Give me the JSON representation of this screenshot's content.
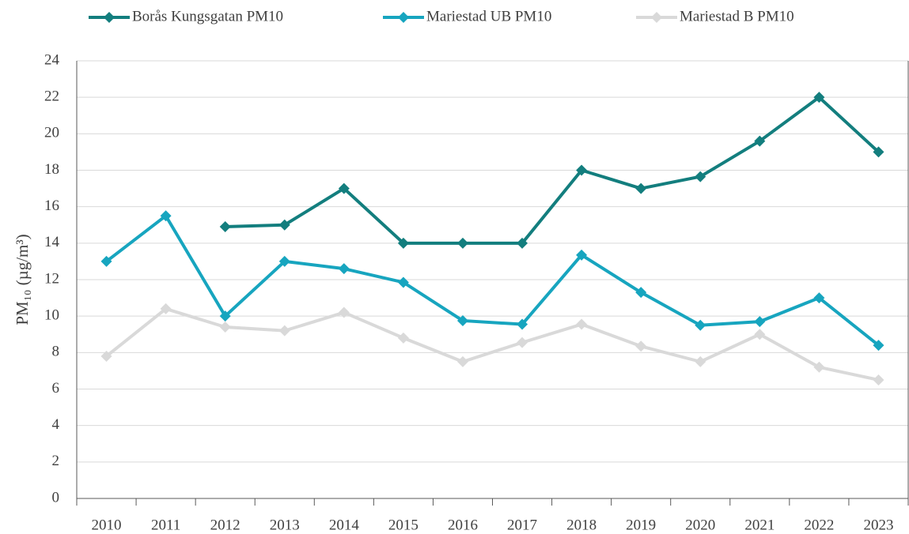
{
  "chart_data": {
    "type": "line",
    "y_label": "PM₁₀ (µg/m³)",
    "categories": [
      "2010",
      "2011",
      "2012",
      "2013",
      "2014",
      "2015",
      "2016",
      "2017",
      "2018",
      "2019",
      "2020",
      "2021",
      "2022",
      "2023"
    ],
    "series": [
      {
        "name": "Borås Kungsgatan PM10",
        "color": "#137e7e",
        "values": [
          null,
          null,
          14.9,
          15,
          17,
          14,
          14,
          14,
          18,
          17,
          17.65,
          19.6,
          22,
          19
        ]
      },
      {
        "name": "Mariestad UB PM10",
        "color": "#17a5bf",
        "values": [
          13,
          15.5,
          10,
          13,
          12.6,
          11.85,
          9.75,
          9.55,
          13.35,
          11.3,
          9.5,
          9.7,
          11,
          8.4
        ]
      },
      {
        "name": "Mariestad B PM10",
        "color": "#d9d9d9",
        "values": [
          7.8,
          10.4,
          9.4,
          9.2,
          10.2,
          8.8,
          7.5,
          8.55,
          9.55,
          8.35,
          7.5,
          9,
          7.2,
          6.5
        ]
      }
    ],
    "ylim": [
      0,
      24
    ],
    "yticks": [
      0,
      2,
      4,
      6,
      8,
      10,
      12,
      14,
      16,
      18,
      20,
      22,
      24
    ],
    "grid": true,
    "legend": "top"
  }
}
